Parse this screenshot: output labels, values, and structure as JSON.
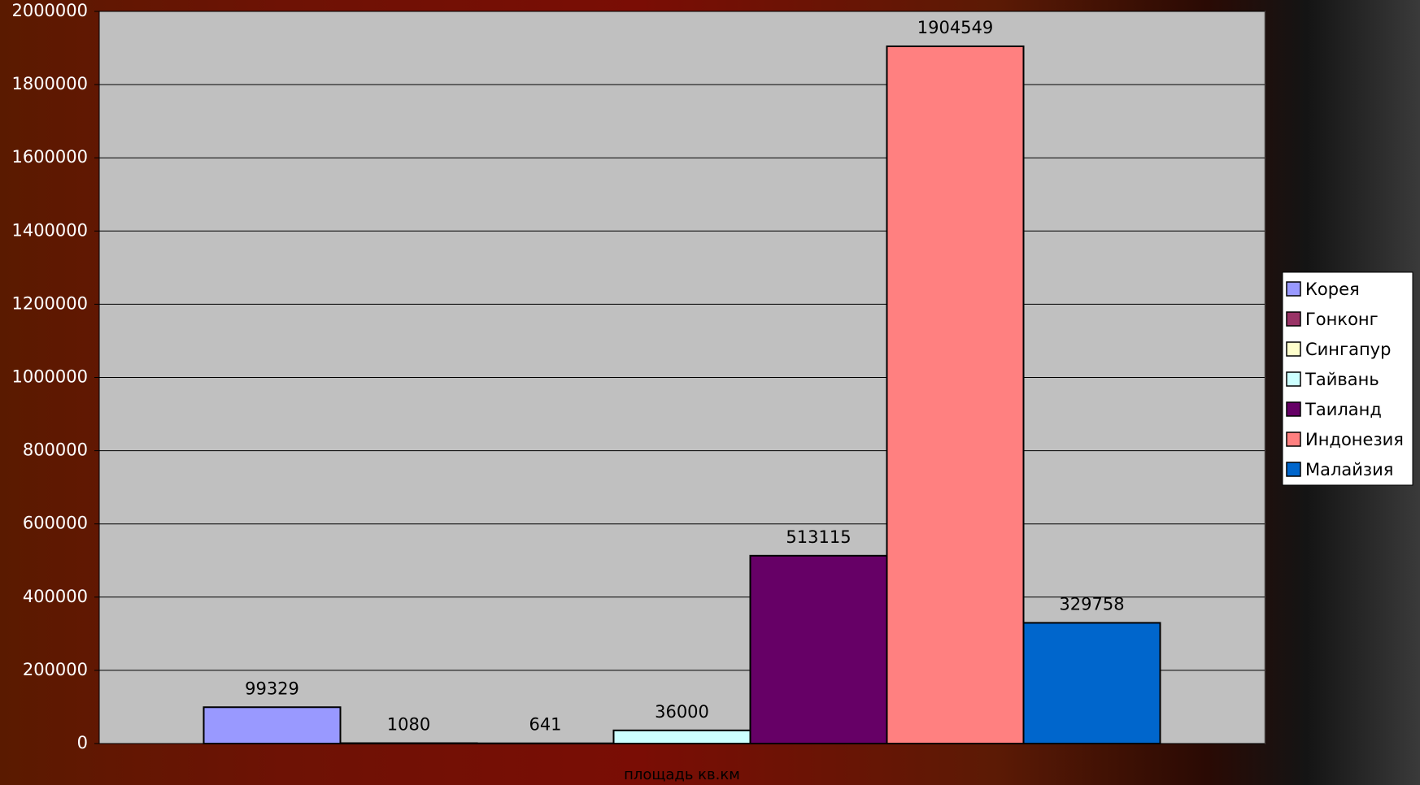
{
  "chart_data": {
    "type": "bar",
    "categories": [
      "площадь кв.км"
    ],
    "series": [
      {
        "name": "Корея",
        "color": "#9999ff",
        "values": [
          99329
        ]
      },
      {
        "name": "Гонконг",
        "color": "#993366",
        "values": [
          1080
        ]
      },
      {
        "name": "Сингапур",
        "color": "#ffffcc",
        "values": [
          641
        ]
      },
      {
        "name": "Тайвань",
        "color": "#ccffff",
        "values": [
          36000
        ]
      },
      {
        "name": "Таиланд",
        "color": "#660066",
        "values": [
          513115
        ]
      },
      {
        "name": "Индонезия",
        "color": "#ff8080",
        "values": [
          1904549
        ]
      },
      {
        "name": "Малайзия",
        "color": "#0066cc",
        "values": [
          329758
        ]
      }
    ],
    "ylim": [
      0,
      2000000
    ],
    "yticks": [
      0,
      200000,
      400000,
      600000,
      800000,
      1000000,
      1200000,
      1400000,
      1600000,
      1800000,
      2000000
    ],
    "grid": true,
    "legend": "right"
  }
}
